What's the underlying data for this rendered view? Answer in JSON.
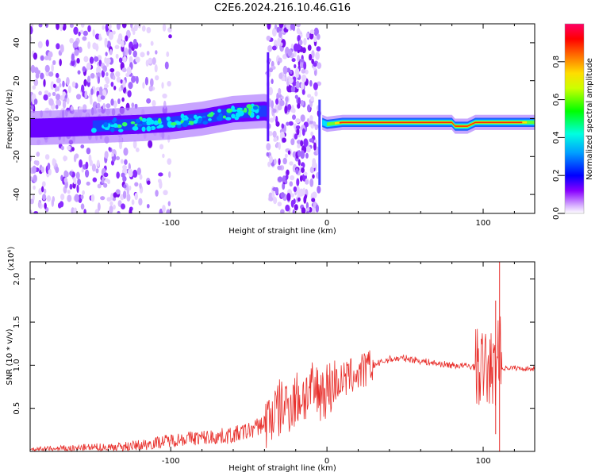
{
  "title": "C2E6.2024.216.10.46.G16",
  "chart_data": [
    {
      "type": "heatmap",
      "xlabel": "Height of straight line (km)",
      "ylabel": "Frequency (Hz)",
      "xlim": [
        -190,
        133
      ],
      "ylim": [
        -50,
        50
      ],
      "xticks": [
        -100,
        0,
        100
      ],
      "yticks": [
        -40,
        -20,
        0,
        20,
        40
      ],
      "colorbar": {
        "label": "Normalized spectral amplitude",
        "range": [
          0,
          1
        ],
        "ticks": [
          "0.0",
          "0.2",
          "0.4",
          "0.6",
          "0.8"
        ]
      },
      "ridge_frequency_hz": [
        {
          "x": -185,
          "y": -5
        },
        {
          "x": -150,
          "y": -4
        },
        {
          "x": -120,
          "y": -3
        },
        {
          "x": -100,
          "y": -2
        },
        {
          "x": -80,
          "y": 0
        },
        {
          "x": -60,
          "y": 3
        },
        {
          "x": -40,
          "y": 4
        },
        {
          "x": -3,
          "y": -2
        },
        {
          "x": 0,
          "y": -3
        },
        {
          "x": 10,
          "y": -2
        },
        {
          "x": 40,
          "y": -2
        },
        {
          "x": 80,
          "y": -2
        },
        {
          "x": 82,
          "y": -4
        },
        {
          "x": 90,
          "y": -4
        },
        {
          "x": 95,
          "y": -2
        },
        {
          "x": 133,
          "y": -2
        }
      ],
      "grid": false
    },
    {
      "type": "line",
      "xlabel": "Height of straight line (km)",
      "ylabel": "SNR (10 * v/v)",
      "y_multiplier": "(x10⁴)",
      "xlim": [
        -190,
        133
      ],
      "ylim": [
        0,
        2.2
      ],
      "xticks": [
        -100,
        0,
        100
      ],
      "yticks": [
        "0.5",
        "1.0",
        "1.5",
        "2.0"
      ],
      "series_color": "#e8302c",
      "series": [
        {
          "x": [
            -190,
            -170,
            -150,
            -130,
            -120,
            -110,
            -100,
            -90,
            -80,
            -70,
            -60,
            -50,
            -45,
            -40,
            -35,
            -30,
            -25,
            -20,
            -15,
            -10,
            -5,
            0,
            5,
            10,
            15,
            20,
            25,
            30,
            40,
            50,
            60,
            70,
            80,
            90,
            100,
            105,
            108,
            110,
            112,
            115,
            120,
            125,
            133
          ],
          "y": [
            0.02,
            0.03,
            0.04,
            0.05,
            0.07,
            0.1,
            0.13,
            0.15,
            0.16,
            0.17,
            0.19,
            0.24,
            0.28,
            0.33,
            0.42,
            0.5,
            0.55,
            0.6,
            0.65,
            0.68,
            0.7,
            0.72,
            0.78,
            0.82,
            0.87,
            0.9,
            0.95,
            1.0,
            1.07,
            1.08,
            1.05,
            1.02,
            1.0,
            0.99,
            0.97,
            0.95,
            0.9,
            1.3,
            0.96,
            0.97,
            0.97,
            0.96,
            0.96
          ]
        }
      ],
      "grid": false
    }
  ]
}
